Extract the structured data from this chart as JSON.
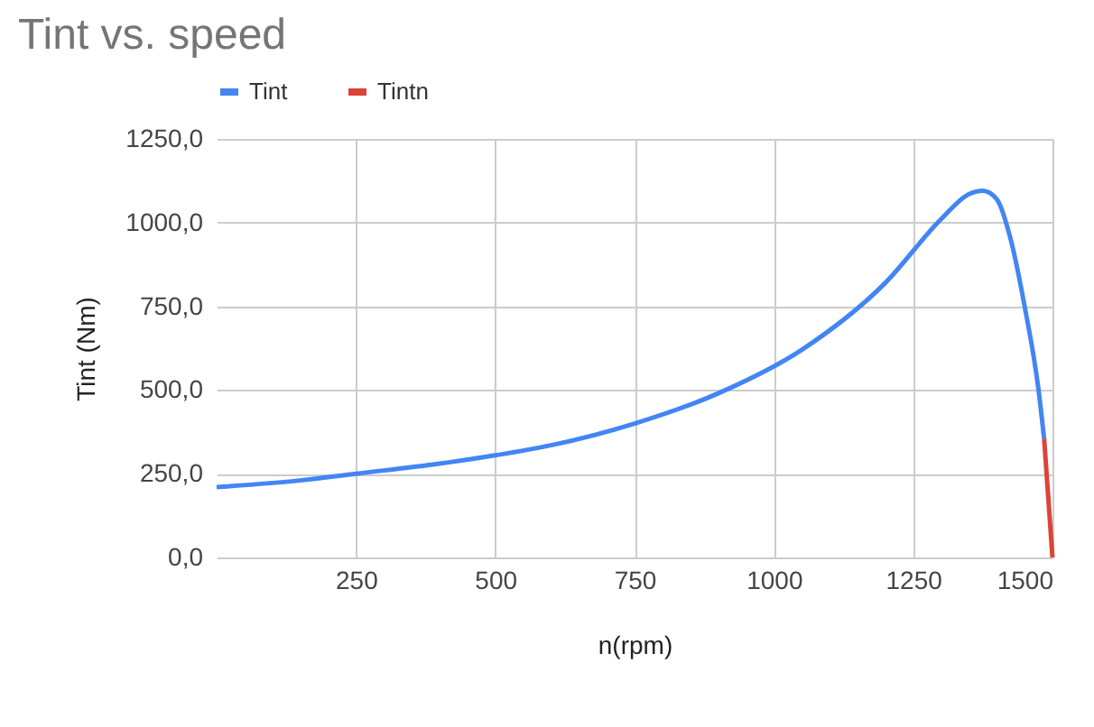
{
  "chart_data": {
    "type": "line",
    "title": "Tint vs. speed",
    "xlabel": "n(rpm)",
    "ylabel": "Tint (Nm)",
    "series": [
      {
        "name": "Tint",
        "color": "#4285f4",
        "x": [
          0,
          150,
          250,
          400,
          500,
          600,
          750,
          900,
          1050,
          1200,
          1300,
          1350,
          1375,
          1400,
          1425,
          1450,
          1475,
          1485
        ],
        "values": [
          210,
          230,
          250,
          280,
          305,
          335,
          400,
          490,
          620,
          820,
          1010,
          1085,
          1095,
          1070,
          950,
          750,
          500,
          355
        ]
      },
      {
        "name": "Tintn",
        "color": "#db4437",
        "x": [
          1485,
          1500
        ],
        "values": [
          355,
          0
        ]
      }
    ],
    "xlim": [
      0,
      1500
    ],
    "xticks": [
      250,
      500,
      750,
      1000,
      1250,
      1500
    ],
    "ylim": [
      0,
      1250
    ],
    "yticks": [
      {
        "value": 0,
        "label": "0,0"
      },
      {
        "value": 250,
        "label": "250,0"
      },
      {
        "value": 500,
        "label": "500,0"
      },
      {
        "value": 750,
        "label": "750,0"
      },
      {
        "value": 1000,
        "label": "1000,0"
      },
      {
        "value": 1250,
        "label": "1250,0"
      }
    ],
    "grid": true,
    "legend": "top"
  }
}
